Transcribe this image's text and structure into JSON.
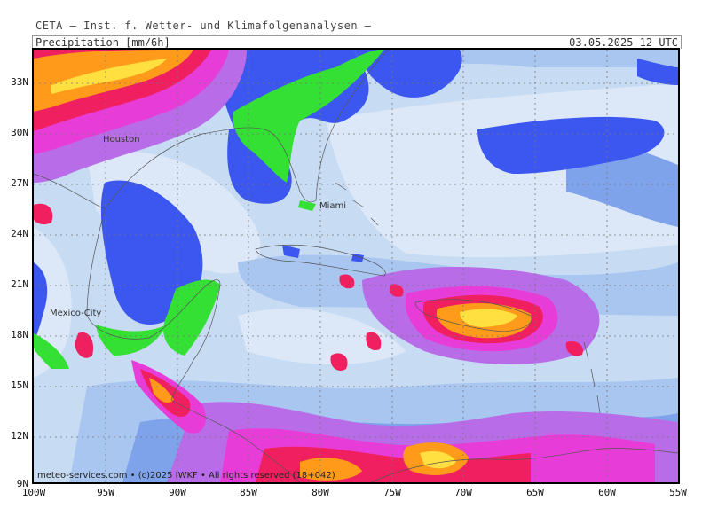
{
  "header": {
    "title": "CETA — Inst. f. Wetter- und Klimafolgenanalysen —"
  },
  "subheader": {
    "variable": "Precipitation [mm/6h]",
    "datetime": "03.05.2025 12 UTC"
  },
  "lat_labels": [
    "33N",
    "30N",
    "27N",
    "24N",
    "21N",
    "18N",
    "15N",
    "12N",
    "9N"
  ],
  "lon_labels": [
    "100W",
    "95W",
    "90W",
    "85W",
    "80W",
    "75W",
    "70W",
    "65W",
    "60W",
    "55W"
  ],
  "cities": {
    "houston": "Houston",
    "miami": "Miami",
    "mexico_city": "Mexico-City"
  },
  "footer": {
    "copyright": "meteo-services.com • (c)2025 IWKF • All rights reserved (18+042)"
  },
  "colors": {
    "background": "#c7dbf3",
    "pale_blue": "#dce8f8",
    "light_blue": "#a9c6f0",
    "mid_blue": "#7fa3ea",
    "blue_fill": "#3b57f0",
    "green_fill": "#33e033",
    "purple": "#b86ce8",
    "magenta": "#e83cd8",
    "red": "#f02060",
    "orange": "#ff9a1a",
    "yellow": "#ffe040"
  }
}
